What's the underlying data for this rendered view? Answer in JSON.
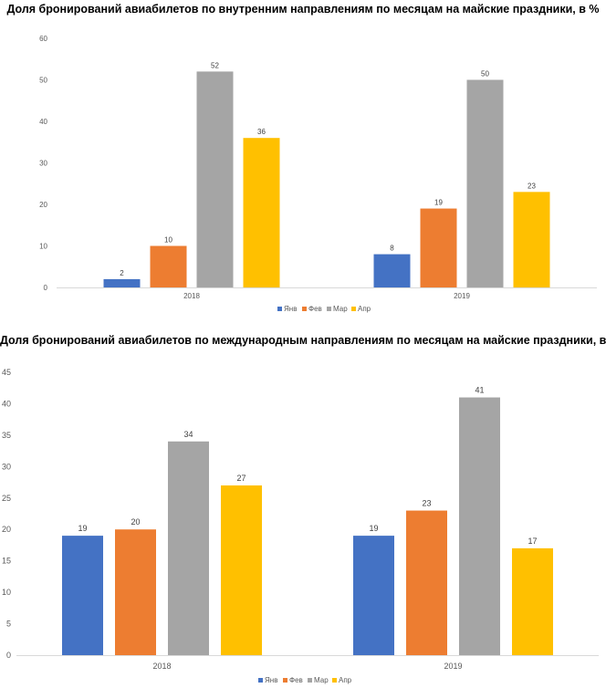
{
  "chart_data": [
    {
      "type": "bar",
      "title": "Доля бронирований  авиабилетов по внутренним направлениям по месяцам на майские праздники, в %",
      "categories": [
        "2018",
        "2019"
      ],
      "series": [
        {
          "name": "Янв",
          "color": "#4472C4",
          "values": [
            2,
            8
          ]
        },
        {
          "name": "Фев",
          "color": "#ED7D31",
          "values": [
            10,
            19
          ]
        },
        {
          "name": "Мар",
          "color": "#A5A5A5",
          "values": [
            52,
            50
          ]
        },
        {
          "name": "Апр",
          "color": "#FFC000",
          "values": [
            36,
            23
          ]
        }
      ],
      "ylim": [
        0,
        60
      ],
      "yticks": [
        0,
        10,
        20,
        30,
        40,
        50,
        60
      ],
      "grid": false,
      "legend": "bottom"
    },
    {
      "type": "bar",
      "title": "Доля бронирований  авиабилетов по международным направлениям по месяцам на майские праздники, в %",
      "categories": [
        "2018",
        "2019"
      ],
      "series": [
        {
          "name": "Янв",
          "color": "#4472C4",
          "values": [
            19,
            19
          ]
        },
        {
          "name": "Фев",
          "color": "#ED7D31",
          "values": [
            20,
            23
          ]
        },
        {
          "name": "Мар",
          "color": "#A5A5A5",
          "values": [
            34,
            41
          ]
        },
        {
          "name": "Апр",
          "color": "#FFC000",
          "values": [
            27,
            17
          ]
        }
      ],
      "ylim": [
        0,
        45
      ],
      "yticks": [
        0,
        5,
        10,
        15,
        20,
        25,
        30,
        35,
        40,
        45
      ],
      "grid": false,
      "legend": "bottom"
    }
  ]
}
